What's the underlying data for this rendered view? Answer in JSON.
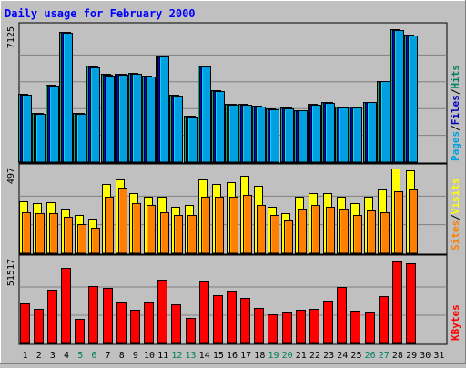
{
  "chart_data": {
    "type": "bar",
    "title": "Daily usage for February 2000",
    "days": [
      "1",
      "2",
      "3",
      "4",
      "5",
      "6",
      "7",
      "8",
      "9",
      "10",
      "11",
      "12",
      "13",
      "14",
      "15",
      "16",
      "17",
      "18",
      "19",
      "20",
      "21",
      "22",
      "23",
      "24",
      "25",
      "26",
      "27",
      "28",
      "29",
      "30",
      "31"
    ],
    "weekend_days": [
      "5",
      "6",
      "12",
      "13",
      "19",
      "20",
      "26",
      "27"
    ],
    "panels": [
      {
        "id": "top",
        "max_label": "7125",
        "ymax": 7125,
        "axis_labels": [
          "Pages",
          "Files",
          "Hits"
        ],
        "series": [
          {
            "name": "Hits",
            "color": "#00805c",
            "values": [
              3620,
              2610,
              4110,
              6940,
              2610,
              5130,
              4690,
              4720,
              4760,
              4610,
              5660,
              3570,
              2470,
              5140,
              3850,
              3100,
              3080,
              3000,
              2850,
              2910,
              2760,
              3080,
              3200,
              2940,
              2960,
              3220,
              4320,
              7070,
              6770
            ]
          },
          {
            "name": "Files",
            "color": "#0000c0",
            "values": [
              3600,
              2600,
              4080,
              6910,
              2600,
              5090,
              4650,
              4680,
              4720,
              4570,
              5630,
              3550,
              2450,
              5100,
              3800,
              3080,
              3060,
              2980,
              2830,
              2890,
              2750,
              3060,
              3180,
              2920,
              2940,
              3200,
              4300,
              7050,
              6750
            ]
          },
          {
            "name": "Pages",
            "color": "#00a0e0",
            "values": [
              3580,
              2590,
              4050,
              6880,
              2590,
              5060,
              4620,
              4650,
              4690,
              4540,
              5600,
              3530,
              2440,
              5070,
              3770,
              3070,
              3050,
              2970,
              2820,
              2880,
              2740,
              3050,
              3170,
              2910,
              2930,
              3190,
              4290,
              7030,
              6730
            ]
          }
        ]
      },
      {
        "id": "middle",
        "max_label": "497",
        "ymax": 497,
        "axis_labels": [
          "Sites",
          "Visits"
        ],
        "series": [
          {
            "name": "Visits",
            "color": "#ffff00",
            "values": [
              300,
              290,
              295,
              260,
              220,
              200,
              400,
              430,
              350,
              330,
              330,
              270,
              280,
              430,
              400,
              410,
              450,
              390,
              270,
              230,
              330,
              350,
              350,
              330,
              290,
              330,
              370,
              490,
              480
            ]
          },
          {
            "name": "Sites",
            "color": "#ff8000",
            "values": [
              240,
              230,
              230,
              210,
              170,
              150,
              330,
              380,
              290,
              280,
              240,
              220,
              220,
              330,
              330,
              330,
              340,
              280,
              220,
              190,
              260,
              280,
              270,
              260,
              220,
              250,
              240,
              360,
              370
            ]
          }
        ]
      },
      {
        "id": "bottom",
        "max_label": "51517",
        "ymax": 51517,
        "axis_labels": [
          "KBytes"
        ],
        "series": [
          {
            "name": "KBytes",
            "color": "#ff0000",
            "values": [
              24500,
              21000,
              32500,
              46000,
              15000,
              35000,
              34000,
              25000,
              20500,
              25000,
              38500,
              24000,
              15500,
              37500,
              29500,
              31500,
              27500,
              21500,
              17500,
              19000,
              20500,
              21000,
              26000,
              34500,
              20000,
              19000,
              29000,
              50000,
              48500
            ]
          }
        ]
      }
    ]
  }
}
